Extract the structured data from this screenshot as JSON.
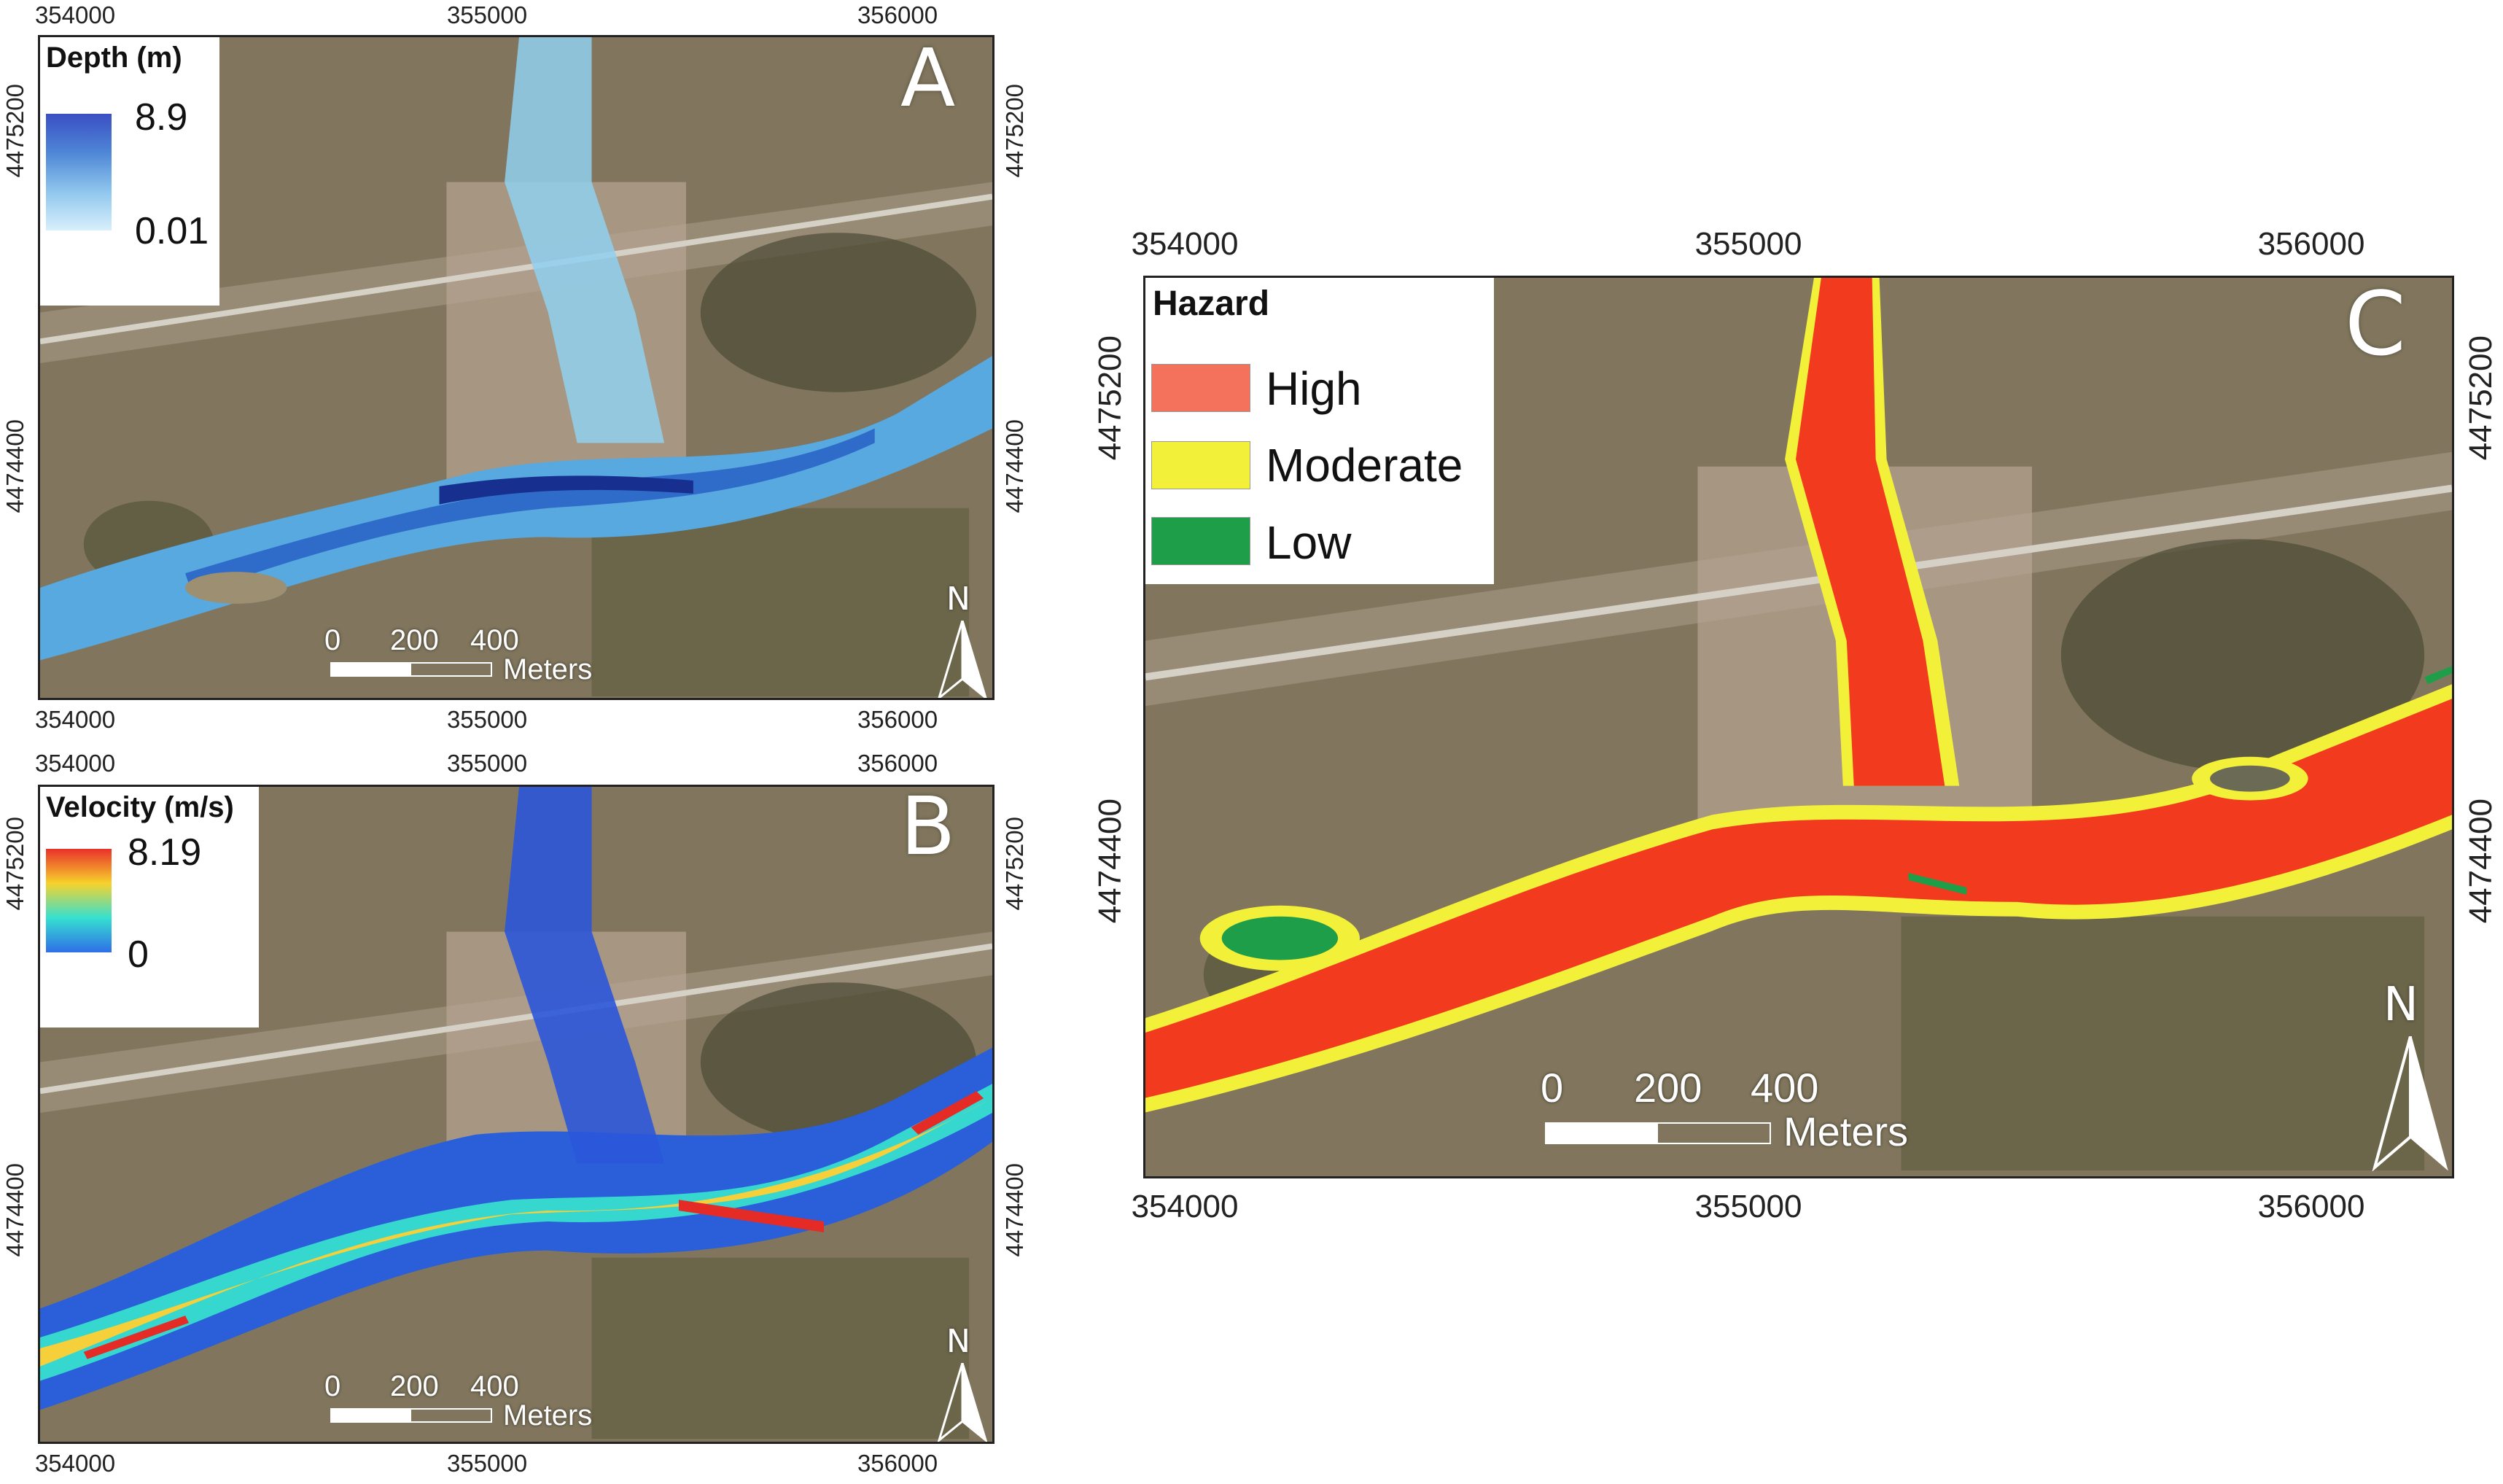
{
  "panels": {
    "A": {
      "letter": "A",
      "x_ticks": [
        "354000",
        "355000",
        "356000"
      ],
      "y_ticks": [
        "4475200",
        "4474400"
      ],
      "legend": {
        "title": "Depth (m)",
        "max": "8.9",
        "min": "0.01",
        "colors": [
          "#3a4fc4",
          "#4f86d6",
          "#8fc6ee",
          "#d8f0fb"
        ]
      },
      "scale": {
        "labels": [
          "0",
          "200",
          "400"
        ],
        "unit": "Meters"
      },
      "north": "N"
    },
    "B": {
      "letter": "B",
      "x_ticks": [
        "354000",
        "355000",
        "356000"
      ],
      "y_ticks": [
        "4475200",
        "4474400"
      ],
      "legend": {
        "title": "Velocity (m/s)",
        "max": "8.19",
        "min": "0",
        "colors": [
          "#e8312a",
          "#f7d22c",
          "#36e0d0",
          "#2f6fe8"
        ]
      },
      "scale": {
        "labels": [
          "0",
          "200",
          "400"
        ],
        "unit": "Meters"
      },
      "north": "N"
    },
    "C": {
      "letter": "C",
      "x_ticks": [
        "354000",
        "355000",
        "356000"
      ],
      "y_ticks": [
        "4475200",
        "4474400"
      ],
      "legend": {
        "title": "Hazard",
        "classes": [
          {
            "label": "High",
            "color": "#f4715b"
          },
          {
            "label": "Moderate",
            "color": "#f3f03a"
          },
          {
            "label": "Low",
            "color": "#1f9e4a"
          }
        ]
      },
      "scale": {
        "labels": [
          "0",
          "200",
          "400"
        ],
        "unit": "Meters"
      },
      "north": "N"
    }
  }
}
